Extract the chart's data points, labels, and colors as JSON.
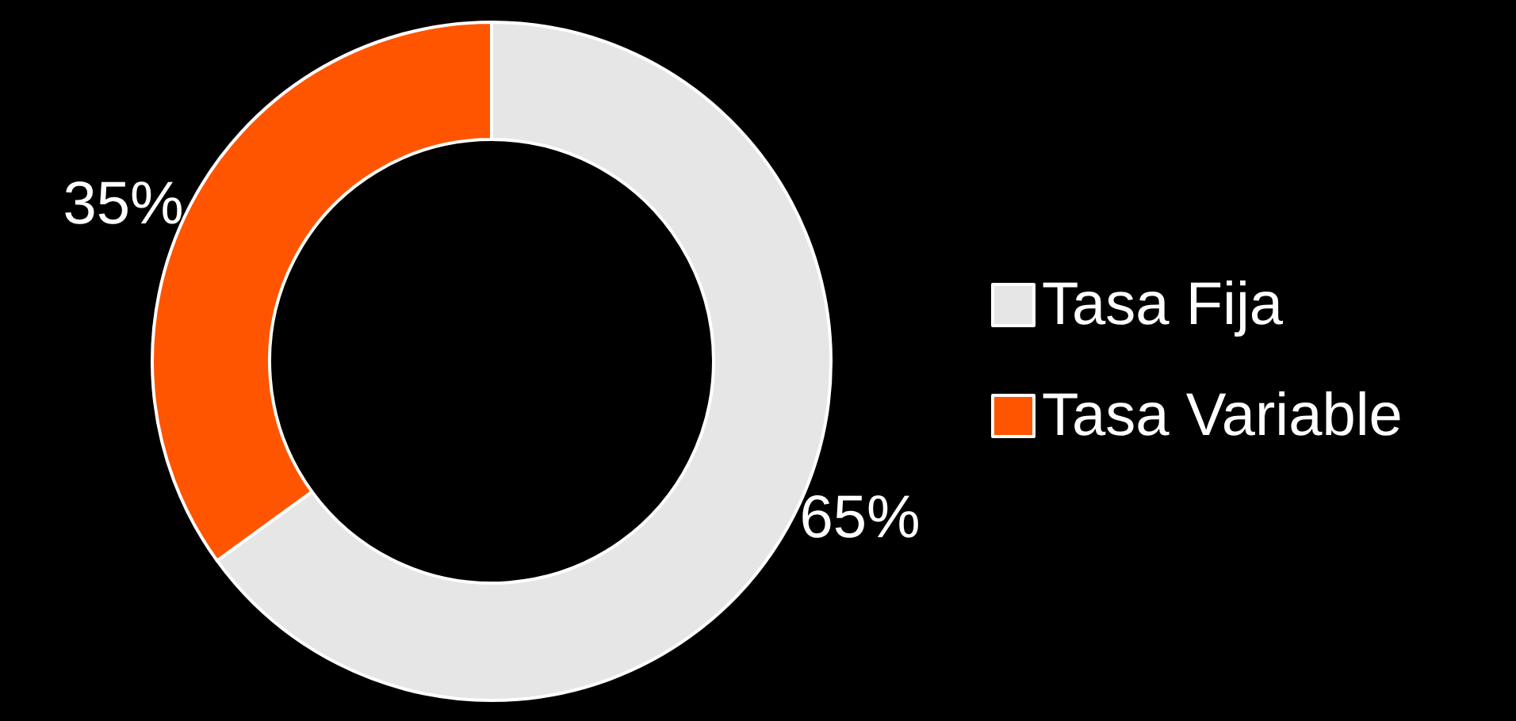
{
  "chart_data": {
    "type": "donut",
    "categories": [
      "Tasa Fija",
      "Tasa Variable"
    ],
    "values": [
      65,
      35
    ],
    "colors": [
      "#e6e6e6",
      "#ff5500"
    ],
    "legend": "right",
    "value_labels": [
      "65%",
      "35%"
    ]
  }
}
